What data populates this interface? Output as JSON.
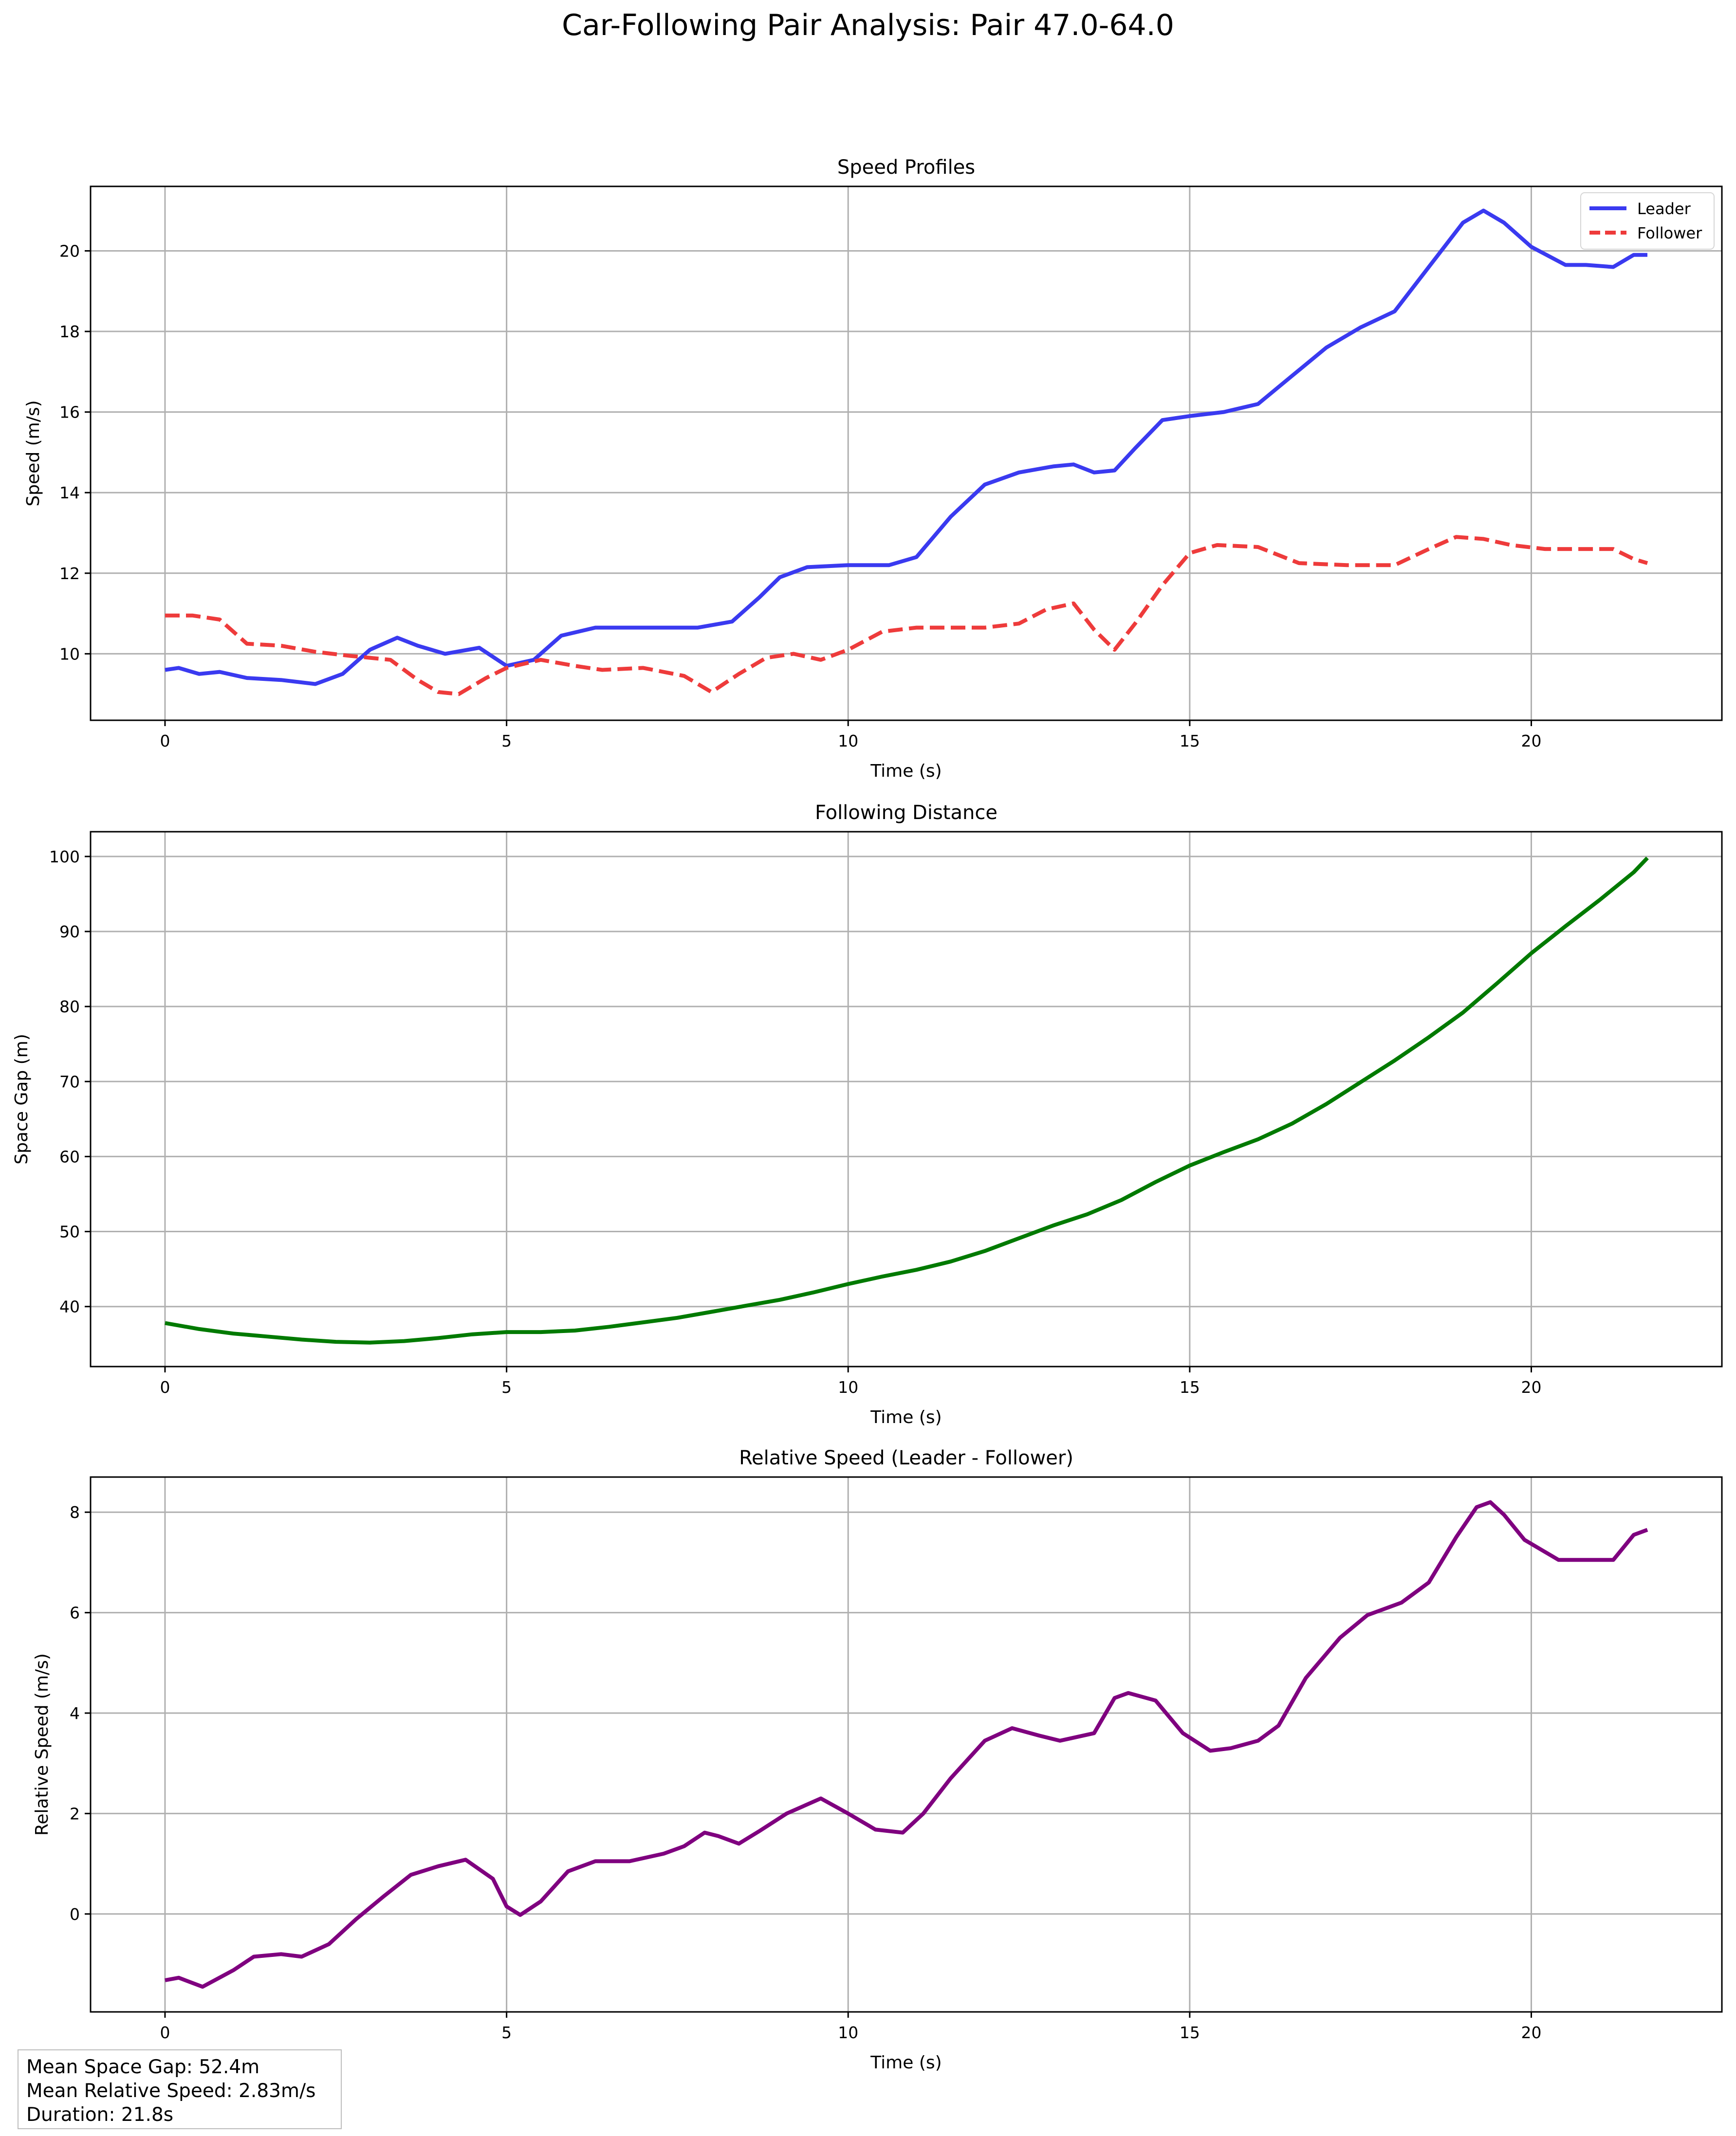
{
  "figure": {
    "title": "Car-Following Pair Analysis: Pair 47.0-64.0"
  },
  "stats": {
    "mean_space_gap": "Mean Space Gap: 52.4m",
    "mean_relative_speed": "Mean Relative Speed: 2.83m/s",
    "duration": "Duration: 21.8s"
  },
  "chart_data": [
    {
      "type": "line",
      "title": "Speed Profiles",
      "xlabel": "Time (s)",
      "ylabel": "Speed (m/s)",
      "xlim": [
        -1.09,
        22.79
      ],
      "ylim": [
        8.35,
        21.6
      ],
      "xticks": [
        0,
        5,
        10,
        15,
        20
      ],
      "yticks": [
        10,
        12,
        14,
        16,
        18,
        20
      ],
      "grid": true,
      "legend": "top-right",
      "series": [
        {
          "name": "Leader",
          "color": "#3a3af0",
          "style": "solid",
          "x": [
            0,
            0.2,
            0.5,
            0.8,
            1.2,
            1.7,
            2.2,
            2.6,
            3.0,
            3.4,
            3.7,
            4.1,
            4.6,
            5.0,
            5.4,
            5.8,
            6.3,
            7.0,
            7.8,
            8.3,
            8.7,
            9.0,
            9.4,
            10.0,
            10.6,
            11.0,
            11.5,
            12.0,
            12.5,
            13.0,
            13.3,
            13.6,
            13.9,
            14.2,
            14.6,
            15.0,
            15.5,
            16.0,
            16.5,
            17.0,
            17.5,
            18.0,
            18.5,
            19.0,
            19.3,
            19.6,
            20.0,
            20.5,
            20.8,
            21.2,
            21.5,
            21.7
          ],
          "y": [
            9.6,
            9.65,
            9.5,
            9.55,
            9.4,
            9.35,
            9.25,
            9.5,
            10.1,
            10.4,
            10.2,
            10.0,
            10.15,
            9.7,
            9.85,
            10.45,
            10.65,
            10.65,
            10.65,
            10.8,
            11.4,
            11.9,
            12.15,
            12.2,
            12.2,
            12.4,
            13.4,
            14.2,
            14.5,
            14.65,
            14.7,
            14.5,
            14.55,
            15.1,
            15.8,
            15.9,
            16.0,
            16.2,
            16.9,
            17.6,
            18.1,
            18.5,
            19.6,
            20.7,
            21.0,
            20.7,
            20.1,
            19.65,
            19.65,
            19.6,
            19.9,
            19.9
          ]
        },
        {
          "name": "Follower",
          "color": "#ee3b3b",
          "style": "dashed",
          "x": [
            0,
            0.4,
            0.8,
            1.2,
            1.7,
            2.2,
            2.7,
            3.3,
            3.7,
            4.0,
            4.3,
            4.7,
            5.0,
            5.5,
            6.0,
            6.4,
            7.0,
            7.6,
            8.0,
            8.4,
            8.8,
            9.2,
            9.6,
            10.0,
            10.5,
            11.0,
            11.5,
            12.0,
            12.5,
            12.9,
            13.3,
            13.6,
            13.9,
            14.2,
            14.6,
            15.0,
            15.4,
            16.0,
            16.6,
            17.3,
            18.0,
            18.5,
            18.9,
            19.3,
            19.7,
            20.2,
            20.8,
            21.2,
            21.5,
            21.7
          ],
          "y": [
            10.95,
            10.95,
            10.85,
            10.25,
            10.2,
            10.05,
            9.95,
            9.85,
            9.35,
            9.05,
            9.0,
            9.4,
            9.65,
            9.85,
            9.7,
            9.6,
            9.65,
            9.45,
            9.05,
            9.5,
            9.9,
            10.0,
            9.85,
            10.1,
            10.55,
            10.65,
            10.65,
            10.65,
            10.75,
            11.1,
            11.25,
            10.6,
            10.1,
            10.75,
            11.7,
            12.5,
            12.7,
            12.65,
            12.25,
            12.2,
            12.2,
            12.6,
            12.9,
            12.85,
            12.7,
            12.6,
            12.6,
            12.6,
            12.35,
            12.25
          ]
        }
      ]
    },
    {
      "type": "line",
      "title": "Following Distance",
      "xlabel": "Time (s)",
      "ylabel": "Space Gap (m)",
      "xlim": [
        -1.09,
        22.79
      ],
      "ylim": [
        32,
        103.3
      ],
      "xticks": [
        0,
        5,
        10,
        15,
        20
      ],
      "yticks": [
        40,
        50,
        60,
        70,
        80,
        90,
        100
      ],
      "grid": true,
      "series": [
        {
          "color": "#007a00",
          "style": "solid",
          "x": [
            0,
            0.5,
            1,
            1.5,
            2,
            2.5,
            3,
            3.5,
            4,
            4.5,
            5,
            5.5,
            6,
            6.5,
            7,
            7.5,
            8,
            8.5,
            9,
            9.5,
            10,
            10.5,
            11,
            11.5,
            12,
            12.5,
            13,
            13.5,
            14,
            14.5,
            15,
            15.5,
            16,
            16.5,
            17,
            17.5,
            18,
            18.5,
            19,
            19.5,
            20,
            20.5,
            21,
            21.5,
            21.7
          ],
          "y": [
            37.8,
            37.0,
            36.4,
            36.0,
            35.6,
            35.3,
            35.2,
            35.4,
            35.8,
            36.3,
            36.6,
            36.6,
            36.8,
            37.3,
            37.9,
            38.5,
            39.3,
            40.1,
            40.9,
            41.9,
            43.0,
            44.0,
            44.9,
            46.0,
            47.4,
            49.1,
            50.8,
            52.3,
            54.2,
            56.6,
            58.8,
            60.6,
            62.3,
            64.4,
            67.0,
            69.9,
            72.8,
            75.9,
            79.2,
            83.1,
            87.1,
            90.7,
            94.2,
            97.9,
            99.8
          ]
        }
      ]
    },
    {
      "type": "line",
      "title": "Relative Speed (Leader - Follower)",
      "xlabel": "Time (s)",
      "ylabel": "Relative Speed (m/s)",
      "xlim": [
        -1.09,
        22.79
      ],
      "ylim": [
        -1.95,
        8.7
      ],
      "xticks": [
        0,
        5,
        10,
        15,
        20
      ],
      "yticks": [
        0,
        2,
        4,
        6,
        8
      ],
      "grid": true,
      "series": [
        {
          "color": "#7f007f",
          "style": "solid",
          "x": [
            0,
            0.2,
            0.55,
            1.0,
            1.3,
            1.7,
            2.0,
            2.4,
            2.8,
            3.2,
            3.6,
            4.0,
            4.4,
            4.8,
            5.0,
            5.2,
            5.5,
            5.9,
            6.3,
            6.8,
            7.3,
            7.6,
            7.9,
            8.1,
            8.4,
            8.7,
            9.1,
            9.6,
            10.0,
            10.4,
            10.8,
            11.1,
            11.5,
            12.0,
            12.4,
            12.8,
            13.1,
            13.6,
            13.9,
            14.1,
            14.5,
            14.9,
            15.3,
            15.6,
            16.0,
            16.3,
            16.7,
            17.2,
            17.6,
            18.1,
            18.5,
            18.9,
            19.2,
            19.4,
            19.6,
            19.9,
            20.4,
            20.8,
            21.2,
            21.5,
            21.7
          ],
          "y": [
            -1.32,
            -1.27,
            -1.45,
            -1.12,
            -0.85,
            -0.8,
            -0.85,
            -0.6,
            -0.1,
            0.35,
            0.78,
            0.95,
            1.08,
            0.7,
            0.15,
            -0.02,
            0.25,
            0.85,
            1.05,
            1.05,
            1.2,
            1.35,
            1.62,
            1.55,
            1.4,
            1.65,
            2.0,
            2.3,
            2.0,
            1.68,
            1.62,
            2.0,
            2.7,
            3.45,
            3.7,
            3.55,
            3.45,
            3.6,
            4.3,
            4.4,
            4.25,
            3.6,
            3.25,
            3.3,
            3.45,
            3.75,
            4.7,
            5.5,
            5.95,
            6.2,
            6.6,
            7.5,
            8.1,
            8.2,
            7.95,
            7.45,
            7.05,
            7.05,
            7.05,
            7.55,
            7.65
          ]
        }
      ]
    }
  ]
}
